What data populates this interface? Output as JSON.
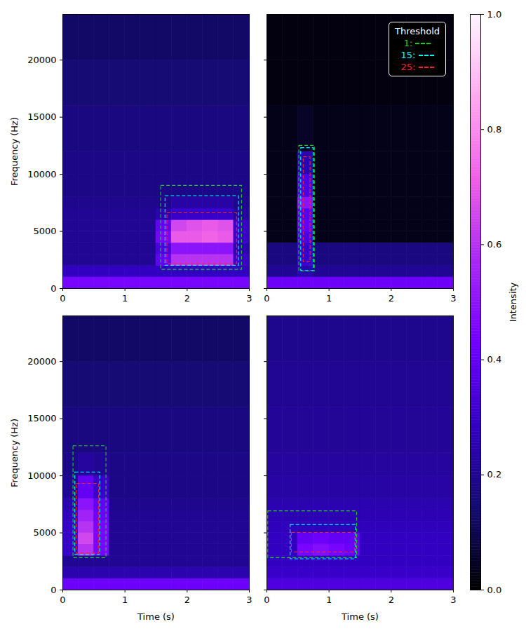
{
  "chart_data": {
    "type": "heatmap",
    "time_edges": [
      0,
      0.25,
      0.5,
      0.75,
      1,
      1.25,
      1.5,
      1.75,
      2,
      2.25,
      2.5,
      2.75,
      3
    ],
    "freq_edges": [
      0,
      1000,
      2000,
      3000,
      4000,
      5000,
      6000,
      7000,
      8000,
      10000,
      12000,
      16000,
      20000,
      24000
    ],
    "colorbar": {
      "range": [
        0,
        1
      ],
      "label": "Intensity",
      "ticks": [
        {
          "value": 0,
          "label": "0.0"
        },
        {
          "value": 0.2,
          "label": "0.2"
        },
        {
          "value": 0.4,
          "label": "0.4"
        },
        {
          "value": 0.6,
          "label": "0.6"
        },
        {
          "value": 0.8,
          "label": "0.8"
        },
        {
          "value": 1,
          "label": "1.0"
        }
      ]
    },
    "panels": [
      {
        "xlim": [
          0,
          3
        ],
        "ylim": [
          0,
          24000
        ],
        "xticks": [
          0,
          1,
          2,
          3
        ],
        "yticks": [
          0,
          5000,
          10000,
          15000,
          20000
        ],
        "ylabel": "Frequency (Hz)",
        "intensity": [
          [
            0.45,
            0.45,
            0.45,
            0.45,
            0.45,
            0.45,
            0.45,
            0.45,
            0.45,
            0.45,
            0.45,
            0.45
          ],
          [
            0.28,
            0.28,
            0.28,
            0.28,
            0.28,
            0.28,
            0.28,
            0.28,
            0.28,
            0.28,
            0.28,
            0.28
          ],
          [
            0.2,
            0.2,
            0.2,
            0.2,
            0.2,
            0.2,
            0.4,
            0.6,
            0.6,
            0.6,
            0.6,
            0.3
          ],
          [
            0.2,
            0.2,
            0.2,
            0.2,
            0.2,
            0.2,
            0.35,
            0.5,
            0.5,
            0.5,
            0.5,
            0.25
          ],
          [
            0.2,
            0.2,
            0.2,
            0.2,
            0.2,
            0.2,
            0.45,
            0.7,
            0.7,
            0.72,
            0.7,
            0.3
          ],
          [
            0.2,
            0.2,
            0.2,
            0.2,
            0.2,
            0.2,
            0.4,
            0.65,
            0.68,
            0.7,
            0.68,
            0.3
          ],
          [
            0.2,
            0.2,
            0.2,
            0.2,
            0.2,
            0.2,
            0.25,
            0.3,
            0.3,
            0.3,
            0.3,
            0.22
          ],
          [
            0.19,
            0.19,
            0.19,
            0.19,
            0.19,
            0.19,
            0.19,
            0.23,
            0.23,
            0.23,
            0.23,
            0.19
          ],
          [
            0.18,
            0.18,
            0.18,
            0.18,
            0.18,
            0.18,
            0.18,
            0.18,
            0.18,
            0.18,
            0.18,
            0.18
          ],
          [
            0.18,
            0.18,
            0.18,
            0.18,
            0.18,
            0.18,
            0.18,
            0.18,
            0.18,
            0.18,
            0.18,
            0.18
          ],
          [
            0.17,
            0.17,
            0.17,
            0.17,
            0.17,
            0.17,
            0.17,
            0.17,
            0.17,
            0.17,
            0.17,
            0.17
          ],
          [
            0.15,
            0.15,
            0.15,
            0.15,
            0.15,
            0.15,
            0.15,
            0.15,
            0.15,
            0.15,
            0.15,
            0.15
          ],
          [
            0.13,
            0.13,
            0.13,
            0.13,
            0.13,
            0.13,
            0.13,
            0.13,
            0.13,
            0.13,
            0.13,
            0.13
          ]
        ],
        "series": [
          {
            "name": "1:",
            "color": "#22cc22",
            "line_style": "dashed",
            "x": [
              1.58,
              2.88
            ],
            "y": [
              1650,
              9000
            ]
          },
          {
            "name": "15:",
            "color": "#00ffff",
            "line_style": "dashed",
            "x": [
              1.65,
              2.83
            ],
            "y": [
              2000,
              8100
            ]
          },
          {
            "name": "25:",
            "color": "#ff2020",
            "line_style": "dashed",
            "x": [
              1.68,
              2.8
            ],
            "y": [
              2150,
              6600
            ]
          }
        ]
      },
      {
        "xlim": [
          0,
          3
        ],
        "ylim": [
          0,
          24000
        ],
        "xticks": [
          0,
          1,
          2,
          3
        ],
        "yticks": [
          0,
          5000,
          10000,
          15000,
          20000
        ],
        "tick_labels": "x",
        "legend": "upper right",
        "legend_title": "Threshold",
        "intensity": [
          [
            0.42,
            0.42,
            0.42,
            0.42,
            0.42,
            0.42,
            0.42,
            0.42,
            0.42,
            0.42,
            0.42,
            0.42
          ],
          [
            0.2,
            0.2,
            0.25,
            0.2,
            0.2,
            0.2,
            0.2,
            0.2,
            0.2,
            0.2,
            0.2,
            0.2
          ],
          [
            0.17,
            0.17,
            0.3,
            0.17,
            0.17,
            0.17,
            0.17,
            0.17,
            0.17,
            0.17,
            0.17,
            0.17
          ],
          [
            0.17,
            0.17,
            0.3,
            0.17,
            0.17,
            0.17,
            0.17,
            0.17,
            0.17,
            0.17,
            0.17,
            0.17
          ],
          [
            0.03,
            0.03,
            0.35,
            0.03,
            0.03,
            0.03,
            0.03,
            0.03,
            0.03,
            0.03,
            0.03,
            0.03
          ],
          [
            0.03,
            0.03,
            0.4,
            0.03,
            0.03,
            0.03,
            0.03,
            0.03,
            0.03,
            0.03,
            0.03,
            0.03
          ],
          [
            0.03,
            0.03,
            0.38,
            0.03,
            0.03,
            0.03,
            0.03,
            0.03,
            0.03,
            0.03,
            0.03,
            0.03
          ],
          [
            0.03,
            0.03,
            0.5,
            0.03,
            0.03,
            0.03,
            0.03,
            0.03,
            0.03,
            0.03,
            0.03,
            0.03
          ],
          [
            0.03,
            0.03,
            0.35,
            0.03,
            0.03,
            0.03,
            0.03,
            0.03,
            0.03,
            0.03,
            0.03,
            0.03
          ],
          [
            0.03,
            0.03,
            0.25,
            0.03,
            0.03,
            0.03,
            0.03,
            0.03,
            0.03,
            0.03,
            0.03,
            0.03
          ],
          [
            0.03,
            0.03,
            0.05,
            0.03,
            0.03,
            0.03,
            0.03,
            0.03,
            0.03,
            0.03,
            0.03,
            0.03
          ],
          [
            0.02,
            0.02,
            0.02,
            0.02,
            0.02,
            0.02,
            0.02,
            0.02,
            0.02,
            0.02,
            0.02,
            0.02
          ],
          [
            0.02,
            0.02,
            0.02,
            0.02,
            0.02,
            0.02,
            0.02,
            0.02,
            0.02,
            0.02,
            0.02,
            0.02
          ]
        ],
        "series": [
          {
            "name": "1:",
            "color": "#22cc22",
            "line_style": "dashed",
            "x": [
              0.52,
              0.77
            ],
            "y": [
              1500,
              12500
            ]
          },
          {
            "name": "15:",
            "color": "#00ffff",
            "line_style": "dashed",
            "x": [
              0.55,
              0.75
            ],
            "y": [
              1550,
              12300
            ]
          },
          {
            "name": "25:",
            "color": "#ff2020",
            "line_style": "dashed",
            "x": [
              0.59,
              0.7
            ],
            "y": [
              2300,
              11500
            ]
          }
        ]
      },
      {
        "xlim": [
          0,
          3
        ],
        "ylim": [
          0,
          24000
        ],
        "xticks": [
          0,
          1,
          2,
          3
        ],
        "yticks": [
          0,
          5000,
          10000,
          15000,
          20000
        ],
        "xlabel": "Time (s)",
        "ylabel": "Frequency (Hz)",
        "intensity": [
          [
            0.42,
            0.42,
            0.42,
            0.42,
            0.42,
            0.42,
            0.42,
            0.42,
            0.42,
            0.42,
            0.42,
            0.42
          ],
          [
            0.25,
            0.25,
            0.25,
            0.25,
            0.25,
            0.25,
            0.25,
            0.25,
            0.25,
            0.25,
            0.25,
            0.25
          ],
          [
            0.2,
            0.2,
            0.2,
            0.2,
            0.2,
            0.2,
            0.2,
            0.2,
            0.2,
            0.2,
            0.2,
            0.2
          ],
          [
            0.3,
            0.6,
            0.45,
            0.2,
            0.2,
            0.2,
            0.2,
            0.2,
            0.2,
            0.2,
            0.2,
            0.2
          ],
          [
            0.3,
            0.65,
            0.45,
            0.2,
            0.2,
            0.2,
            0.2,
            0.2,
            0.2,
            0.2,
            0.2,
            0.2
          ],
          [
            0.3,
            0.6,
            0.45,
            0.2,
            0.2,
            0.2,
            0.2,
            0.2,
            0.2,
            0.2,
            0.2,
            0.2
          ],
          [
            0.28,
            0.55,
            0.42,
            0.2,
            0.2,
            0.2,
            0.2,
            0.2,
            0.2,
            0.2,
            0.2,
            0.2
          ],
          [
            0.25,
            0.5,
            0.4,
            0.19,
            0.19,
            0.19,
            0.19,
            0.19,
            0.19,
            0.19,
            0.19,
            0.19
          ],
          [
            0.2,
            0.4,
            0.3,
            0.18,
            0.18,
            0.18,
            0.18,
            0.18,
            0.18,
            0.18,
            0.18,
            0.18
          ],
          [
            0.18,
            0.22,
            0.2,
            0.18,
            0.18,
            0.18,
            0.18,
            0.18,
            0.18,
            0.18,
            0.18,
            0.18
          ],
          [
            0.17,
            0.17,
            0.17,
            0.17,
            0.17,
            0.17,
            0.17,
            0.17,
            0.17,
            0.17,
            0.17,
            0.17
          ],
          [
            0.15,
            0.15,
            0.15,
            0.15,
            0.15,
            0.15,
            0.15,
            0.15,
            0.15,
            0.15,
            0.15,
            0.15
          ],
          [
            0.13,
            0.13,
            0.13,
            0.13,
            0.13,
            0.13,
            0.13,
            0.13,
            0.13,
            0.13,
            0.13,
            0.13
          ]
        ],
        "series": [
          {
            "name": "1:",
            "color": "#22cc22",
            "line_style": "dashed",
            "x": [
              0.17,
              0.7
            ],
            "y": [
              2800,
              12600
            ]
          },
          {
            "name": "15:",
            "color": "#00ffff",
            "line_style": "dashed",
            "x": [
              0.2,
              0.6
            ],
            "y": [
              3100,
              10300
            ]
          },
          {
            "name": "25:",
            "color": "#ff2020",
            "line_style": "dashed",
            "x": [
              0.22,
              0.58
            ],
            "y": [
              3200,
              9300
            ]
          }
        ]
      },
      {
        "xlim": [
          0,
          3
        ],
        "ylim": [
          0,
          24000
        ],
        "xticks": [
          0,
          1,
          2,
          3
        ],
        "yticks": [
          0,
          5000,
          10000,
          15000,
          20000
        ],
        "xlabel": "Time (s)",
        "tick_labels": "x",
        "intensity": [
          [
            0.35,
            0.35,
            0.35,
            0.35,
            0.35,
            0.35,
            0.35,
            0.35,
            0.35,
            0.35,
            0.35,
            0.35
          ],
          [
            0.3,
            0.3,
            0.3,
            0.3,
            0.3,
            0.3,
            0.3,
            0.3,
            0.3,
            0.3,
            0.3,
            0.3
          ],
          [
            0.28,
            0.28,
            0.28,
            0.28,
            0.28,
            0.28,
            0.28,
            0.28,
            0.28,
            0.28,
            0.28,
            0.28
          ],
          [
            0.28,
            0.28,
            0.45,
            0.48,
            0.45,
            0.42,
            0.28,
            0.28,
            0.28,
            0.28,
            0.28,
            0.28
          ],
          [
            0.28,
            0.28,
            0.4,
            0.42,
            0.4,
            0.4,
            0.28,
            0.28,
            0.28,
            0.28,
            0.28,
            0.28
          ],
          [
            0.27,
            0.27,
            0.27,
            0.27,
            0.27,
            0.27,
            0.27,
            0.27,
            0.27,
            0.27,
            0.27,
            0.27
          ],
          [
            0.26,
            0.26,
            0.26,
            0.26,
            0.26,
            0.26,
            0.26,
            0.26,
            0.26,
            0.26,
            0.26,
            0.26
          ],
          [
            0.25,
            0.25,
            0.25,
            0.25,
            0.25,
            0.25,
            0.25,
            0.25,
            0.25,
            0.25,
            0.25,
            0.25
          ],
          [
            0.23,
            0.23,
            0.23,
            0.23,
            0.23,
            0.23,
            0.23,
            0.23,
            0.23,
            0.23,
            0.23,
            0.23
          ],
          [
            0.22,
            0.22,
            0.22,
            0.22,
            0.22,
            0.22,
            0.22,
            0.22,
            0.22,
            0.22,
            0.22,
            0.22
          ],
          [
            0.21,
            0.21,
            0.21,
            0.21,
            0.21,
            0.21,
            0.21,
            0.21,
            0.21,
            0.21,
            0.21,
            0.21
          ],
          [
            0.2,
            0.2,
            0.2,
            0.2,
            0.2,
            0.2,
            0.2,
            0.2,
            0.2,
            0.2,
            0.2,
            0.2
          ],
          [
            0.19,
            0.19,
            0.19,
            0.19,
            0.19,
            0.19,
            0.19,
            0.19,
            0.19,
            0.19,
            0.19,
            0.19
          ]
        ],
        "series": [
          {
            "name": "1:",
            "color": "#22cc22",
            "line_style": "dashed",
            "x": [
              0.02,
              1.45
            ],
            "y": [
              2800,
              6900
            ]
          },
          {
            "name": "15:",
            "color": "#00ffff",
            "line_style": "dashed",
            "x": [
              0.38,
              1.43
            ],
            "y": [
              2700,
              5700
            ]
          },
          {
            "name": "25:",
            "color": "#ff2020",
            "line_style": "dashed",
            "x": [
              0.4,
              1.42
            ],
            "y": [
              3300,
              5000
            ]
          }
        ]
      }
    ]
  }
}
